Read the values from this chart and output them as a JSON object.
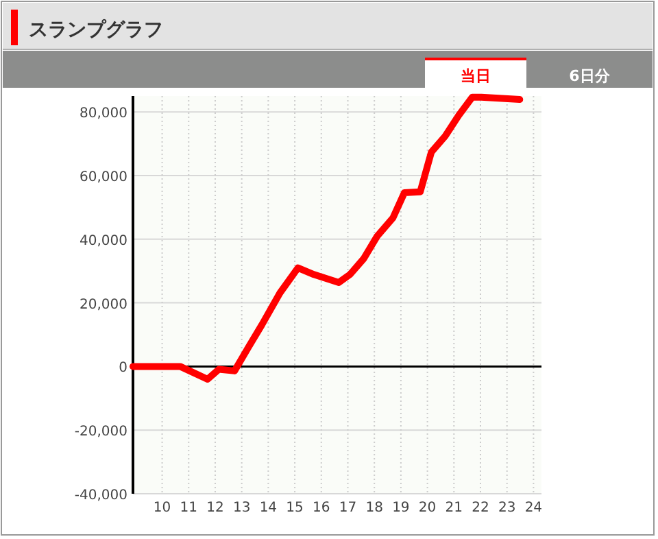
{
  "chart_data": {
    "type": "line",
    "title": "スランプグラフ",
    "annotations": [
      "当日",
      "6日分"
    ],
    "x": [
      8.9,
      10.68,
      11.71,
      12.14,
      12.73,
      13.25,
      13.76,
      14.44,
      15.12,
      15.72,
      16.66,
      17.08,
      17.6,
      18.11,
      18.7,
      19.13,
      19.73,
      20.15,
      20.67,
      21.18,
      21.69,
      22.03,
      23.48
    ],
    "series": [
      {
        "color": "#ff0000",
        "values": [
          0,
          0,
          -4000,
          -900,
          -1400,
          6000,
          13100,
          23100,
          31000,
          28900,
          26400,
          28900,
          33900,
          41000,
          46700,
          54600,
          54900,
          67400,
          72400,
          78900,
          84600,
          84600,
          83900
        ]
      }
    ],
    "xlim": [
      8.9,
      24.3
    ],
    "ylim": [
      -40000,
      85000
    ],
    "xticks": [
      10,
      11,
      12,
      13,
      14,
      15,
      16,
      17,
      18,
      19,
      20,
      21,
      22,
      23,
      24
    ],
    "yticks": [
      {
        "value": -40000,
        "label": "-40,000"
      },
      {
        "value": -20000,
        "label": "-20,000"
      },
      {
        "value": 0,
        "label": "0"
      },
      {
        "value": 20000,
        "label": "20,000"
      },
      {
        "value": 40000,
        "label": "40,000"
      },
      {
        "value": 60000,
        "label": "60,000"
      },
      {
        "value": 80000,
        "label": "80,000"
      }
    ],
    "grid": true,
    "marker": "none",
    "line_style": "solid"
  }
}
